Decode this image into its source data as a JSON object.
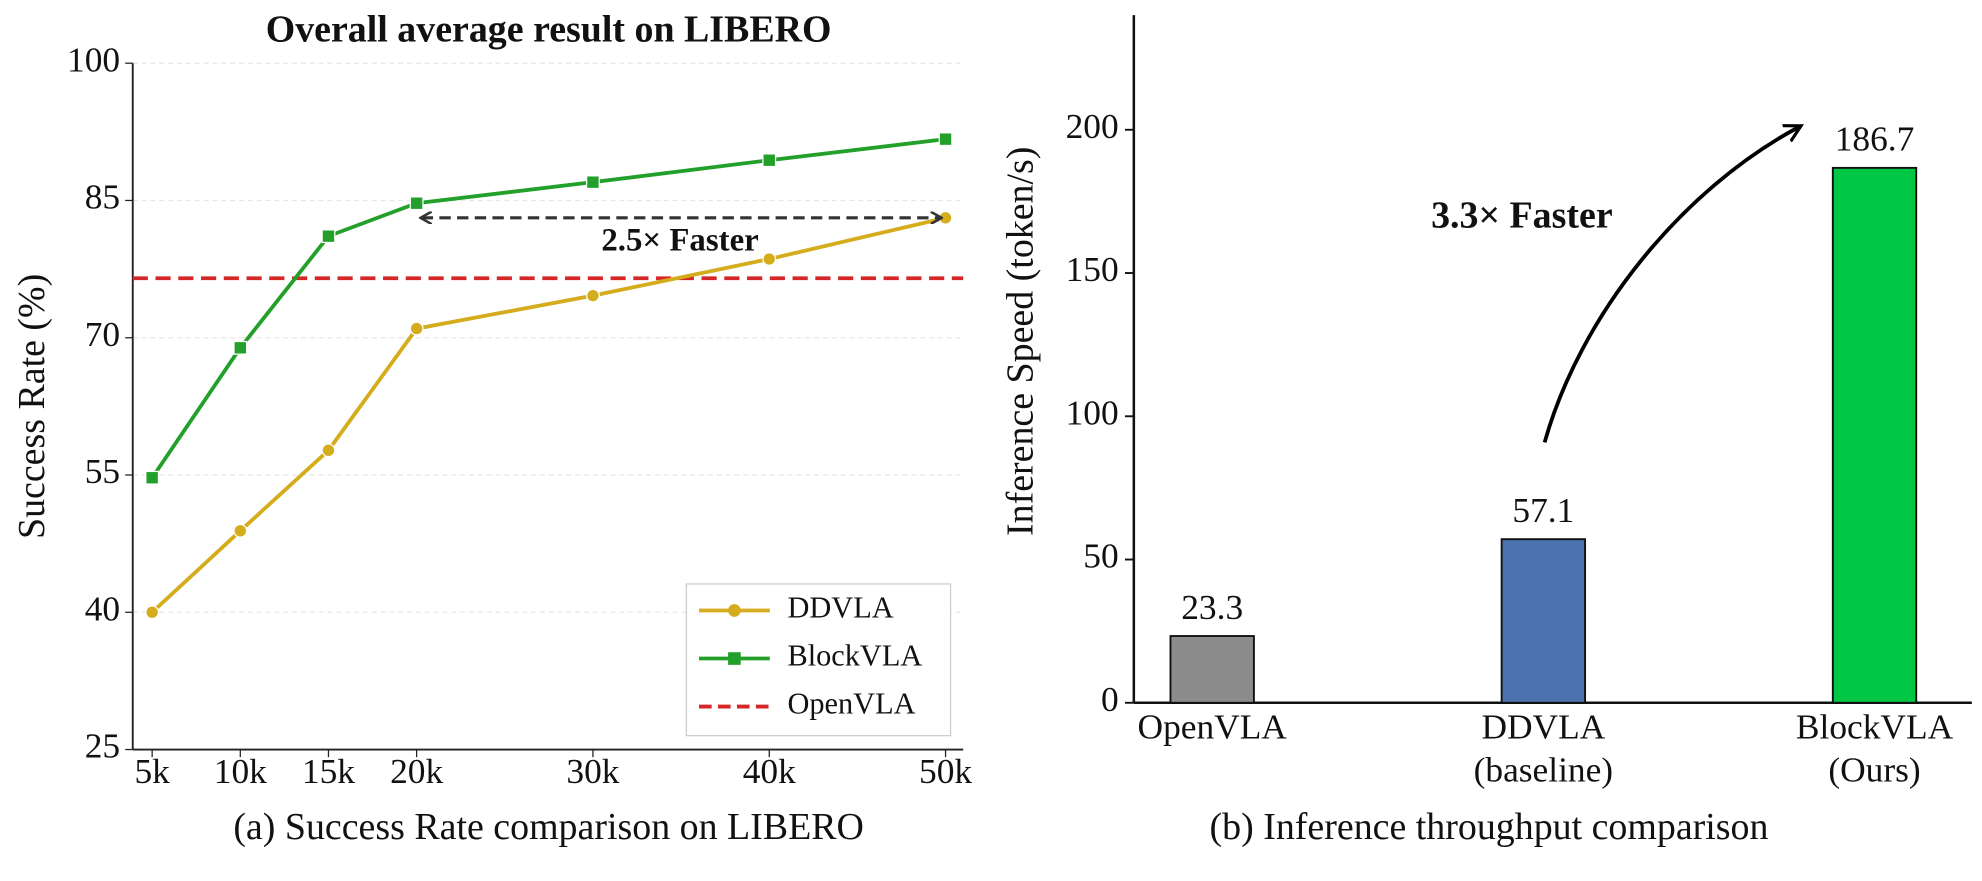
{
  "chart_data": [
    {
      "type": "line",
      "title": "Overall average result on LIBERO",
      "y_label": "Success Rate (%)",
      "caption": "(a) Success Rate comparison on LIBERO",
      "x": [
        5000,
        10000,
        15000,
        20000,
        30000,
        40000,
        50000
      ],
      "xlim": [
        3900,
        51000
      ],
      "xticks": [
        {
          "value": 5000,
          "label": "5k"
        },
        {
          "value": 10000,
          "label": "10k"
        },
        {
          "value": 15000,
          "label": "15k"
        },
        {
          "value": 20000,
          "label": "20k"
        },
        {
          "value": 30000,
          "label": "30k"
        },
        {
          "value": 40000,
          "label": "40k"
        },
        {
          "value": 50000,
          "label": "50k"
        }
      ],
      "ylim": [
        25,
        100
      ],
      "yticks": [
        25,
        40,
        55,
        70,
        85,
        100
      ],
      "grid": true,
      "legend": "lower right",
      "series": [
        {
          "name": "DDVLA",
          "color": "#d4ac1c",
          "marker": "circle",
          "values": [
            40,
            48.9,
            57.7,
            71,
            74.6,
            78.6,
            83.1
          ]
        },
        {
          "name": "BlockVLA",
          "color": "#22a02a",
          "marker": "square",
          "values": [
            54.7,
            68.9,
            81.1,
            84.7,
            87.0,
            89.4,
            91.7
          ]
        }
      ],
      "reference_lines": [
        {
          "name": "OpenVLA",
          "color": "#d62728",
          "value": 76.5
        }
      ],
      "annotation": "2.5× Faster"
    },
    {
      "type": "bar",
      "y_label": "Inference Speed (token/s)",
      "caption": "(b) Inference throughput comparison",
      "categories": [
        "OpenVLA",
        "DDVLA\n(baseline)",
        "BlockVLA\n(Ours)"
      ],
      "values": [
        23.3,
        57.1,
        186.7
      ],
      "colors": [
        "#8c8c8c",
        "#4c72b0",
        "#00c844"
      ],
      "ylim": [
        0,
        240
      ],
      "yticks": [
        0,
        50,
        100,
        150,
        200
      ],
      "annotation": "3.3× Faster",
      "annotation_color": "#e03030"
    }
  ]
}
